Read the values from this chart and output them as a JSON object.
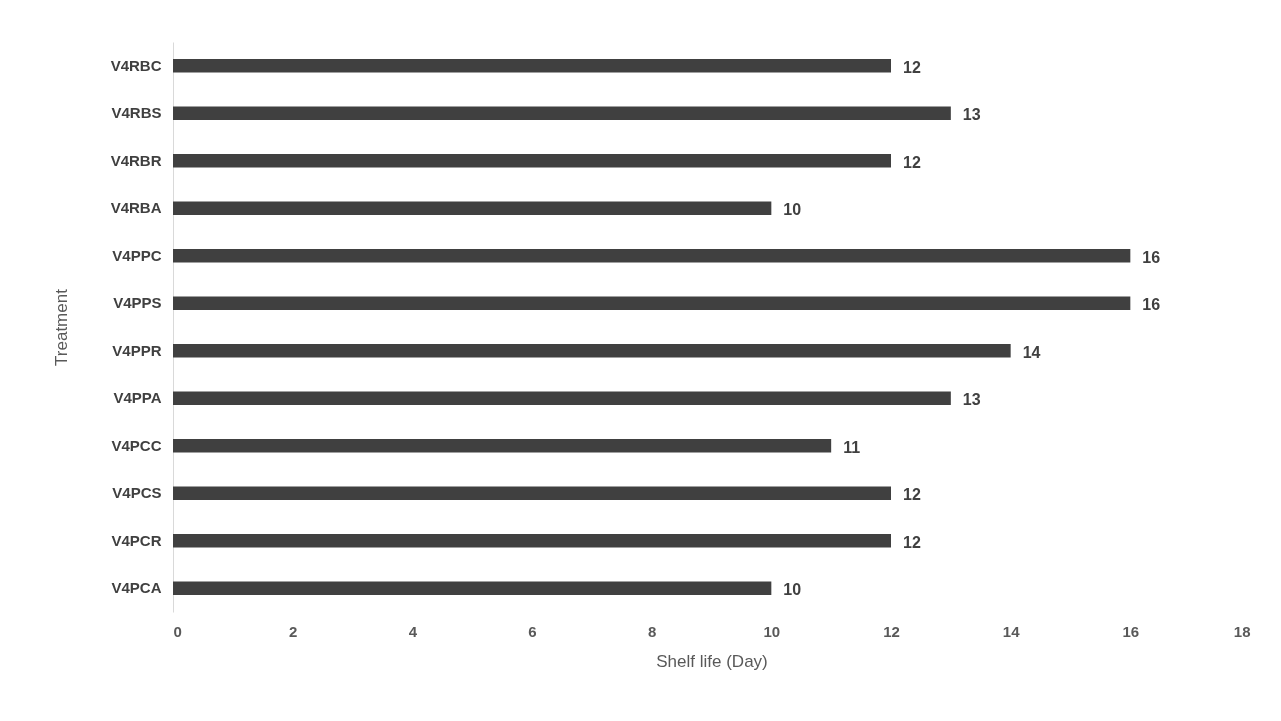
{
  "chart_data": {
    "type": "bar",
    "orientation": "horizontal",
    "xlabel": "Shelf life (Day)",
    "ylabel": "Treatment",
    "categories": [
      "V4RBC",
      "V4RBS",
      "V4RBR",
      "V4RBA",
      "V4PPC",
      "V4PPS",
      "V4PPR",
      "V4PPA",
      "V4PCC",
      "V4PCS",
      "V4PCR",
      "V4PCA"
    ],
    "values": [
      12,
      13,
      12,
      10,
      16,
      16,
      14,
      13,
      11,
      12,
      12,
      10
    ],
    "color": "#404040",
    "xlim": [
      0,
      18
    ],
    "xticks": [
      0,
      2,
      4,
      6,
      8,
      10,
      12,
      14,
      16,
      18
    ],
    "grid": false,
    "data_labels": true
  }
}
